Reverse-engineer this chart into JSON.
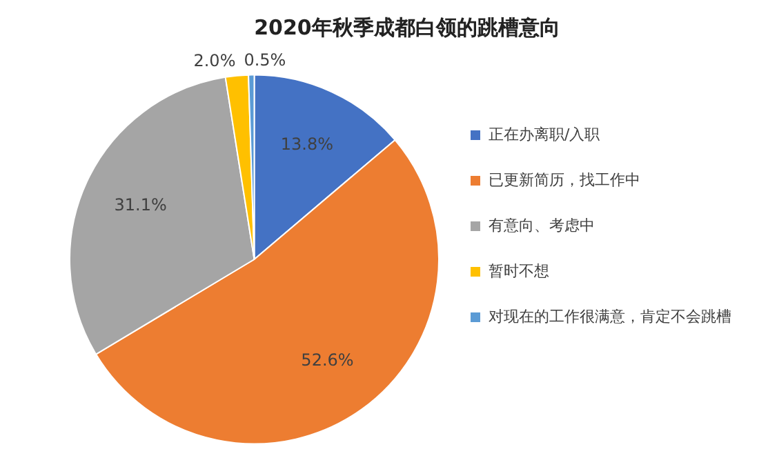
{
  "chart_data": {
    "type": "pie",
    "title": "2020年秋季成都白领的跳槽意向",
    "categories": [
      "正在办离职/入职",
      "已更新简历，找工作中",
      "有意向、考虑中",
      "暂时不想",
      "对现在的工作很满意，肯定不会跳槽"
    ],
    "values": [
      13.8,
      52.6,
      31.1,
      2.0,
      0.5
    ],
    "colors": [
      "#4472c4",
      "#ed7d31",
      "#a5a5a5",
      "#ffc000",
      "#5b9bd5"
    ],
    "value_labels": [
      "13.8%",
      "52.6%",
      "31.1%",
      "2.0%",
      "0.5%"
    ],
    "legend": "right"
  }
}
